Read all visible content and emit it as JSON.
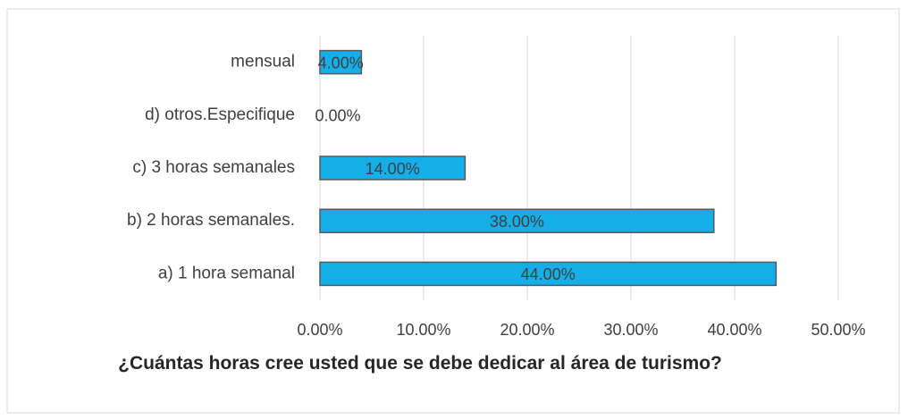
{
  "chart_data": {
    "type": "bar",
    "orientation": "horizontal",
    "title": "¿Cuántas horas cree usted que se debe dedicar al área de turismo?",
    "categories": [
      "mensual",
      "d) otros.Especifique",
      "c) 3 horas semanales",
      "b) 2 horas semanales.",
      "a) 1 hora semanal"
    ],
    "values": [
      4,
      0,
      14,
      38,
      44
    ],
    "value_labels": [
      "4.00%",
      "0.00%",
      "14.00%",
      "38.00%",
      "44.00%"
    ],
    "color": "#14aee8",
    "xlim": [
      0,
      50
    ],
    "xticks": [
      {
        "value": 0,
        "label": "0.00%"
      },
      {
        "value": 10,
        "label": "10.00%"
      },
      {
        "value": 20,
        "label": "20.00%"
      },
      {
        "value": 30,
        "label": "30.00%"
      },
      {
        "value": 40,
        "label": "40.00%"
      },
      {
        "value": 50,
        "label": "50.00%"
      }
    ],
    "grid": true
  }
}
